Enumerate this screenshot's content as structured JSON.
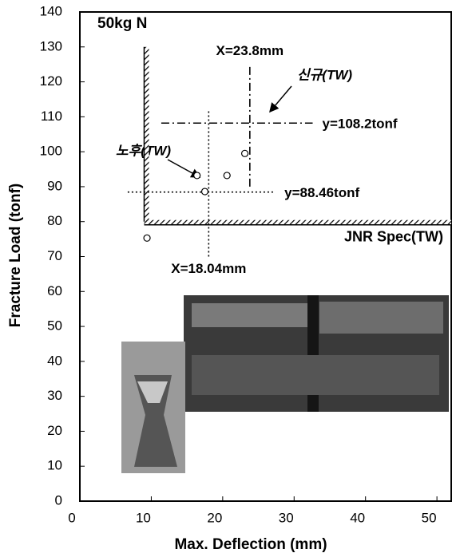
{
  "chart_data": {
    "type": "scatter",
    "title": "50kg N",
    "x_label": "Max. Deflection (mm)",
    "y_label": "Fracture Load (tonf)",
    "x": [
      9.4,
      16.4,
      17.5,
      20.6,
      23.1
    ],
    "y": [
      75.3,
      93.2,
      88.6,
      93.2,
      99.5
    ],
    "color": "#000000",
    "xlim": [
      0,
      52
    ],
    "xticks": [
      0,
      10,
      20,
      30,
      40,
      50
    ],
    "ylim": [
      0,
      140
    ],
    "yticks": [
      0,
      10,
      20,
      30,
      40,
      50,
      60,
      70,
      80,
      90,
      100,
      110,
      120,
      130,
      140
    ],
    "reference_lines": [
      {
        "label": "X=18.04mm",
        "axis": "x",
        "value": 18.04,
        "span": [
          70,
          112
        ]
      },
      {
        "label": "X=23.8mm",
        "axis": "x",
        "value": 23.8,
        "span": [
          90,
          125
        ]
      },
      {
        "label": "y=108.2tonf",
        "axis": "y",
        "value": 108.2,
        "span": [
          11.4,
          32.6
        ]
      },
      {
        "label": "y=88.46tonf",
        "axis": "y",
        "value": 88.46,
        "span": [
          6.7,
          27.3
        ]
      }
    ],
    "spec": {
      "label": "JNR Spec(TW)",
      "x": 9,
      "y": 80,
      "ytop": 130
    },
    "annotations": [
      {
        "text": "신규(TW)"
      },
      {
        "text": "노후(TW)"
      }
    ]
  }
}
